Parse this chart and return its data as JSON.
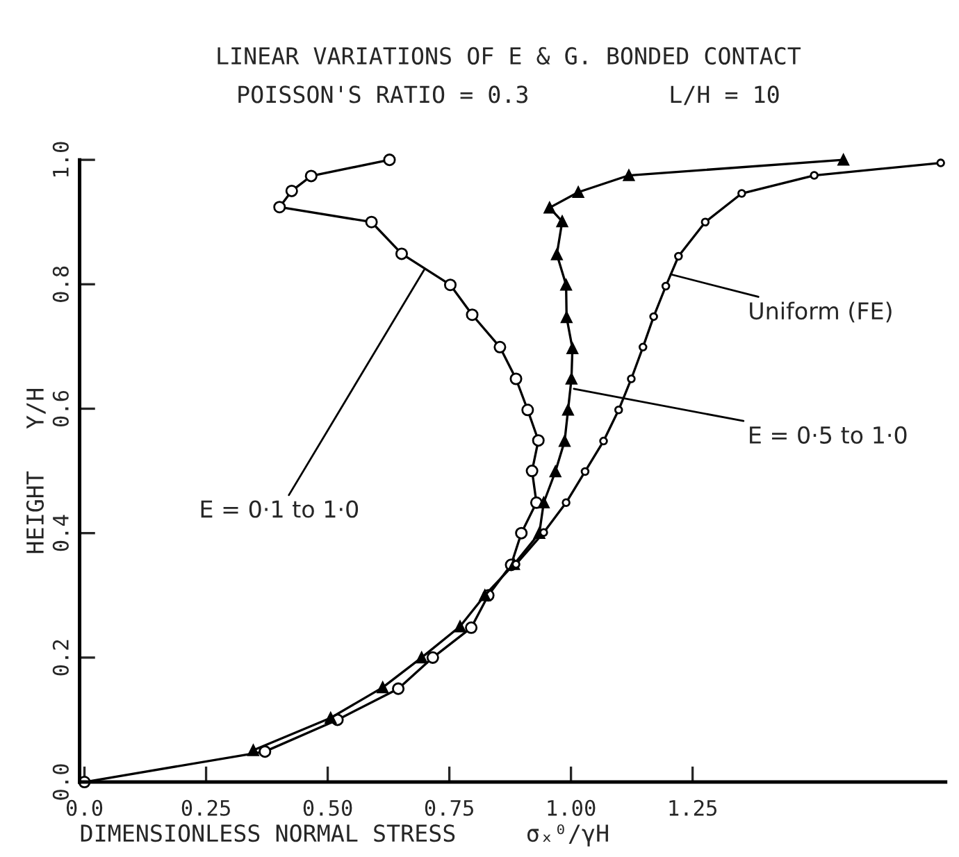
{
  "chart_data": {
    "type": "line",
    "title": "LINEAR VARIATIONS OF E & G. BONDED CONTACT",
    "subtitle": "POISSON'S RATIO = 0.3          L/H = 10",
    "xlabel": "DIMENSIONLESS NORMAL STRESS     σₓ⁰/γH",
    "ylabel": "HEIGHT   Y/H",
    "series": [
      {
        "color": "#000000",
        "marker": "circle",
        "x": [
          0,
          0.371,
          0.52,
          0.645,
          0.716,
          0.795,
          0.83,
          0.877,
          0.898,
          0.929,
          0.92,
          0.933,
          0.911,
          0.887,
          0.854,
          0.797,
          0.752,
          0.652,
          0.59,
          0.401,
          0.426,
          0.466,
          0.627
        ],
        "values": [
          0,
          0.049,
          0.1,
          0.15,
          0.2,
          0.248,
          0.3,
          0.349,
          0.4,
          0.449,
          0.5,
          0.549,
          0.598,
          0.648,
          0.699,
          0.751,
          0.799,
          0.849,
          0.9,
          0.924,
          0.95,
          0.974,
          1.0
        ]
      },
      {
        "color": "#000000",
        "marker": "triangle",
        "x": [
          0.347,
          0.506,
          0.613,
          0.693,
          0.772,
          0.823,
          0.883,
          0.935,
          0.944,
          0.968,
          0.987,
          0.994,
          1.001,
          1.003,
          0.991,
          0.99,
          0.971,
          0.982,
          0.956,
          1.015,
          1.119,
          1.56
        ],
        "values": [
          0.051,
          0.103,
          0.152,
          0.2,
          0.25,
          0.3,
          0.35,
          0.4,
          0.449,
          0.499,
          0.548,
          0.598,
          0.648,
          0.697,
          0.747,
          0.799,
          0.848,
          0.901,
          0.923,
          0.948,
          0.975,
          1.0
        ]
      },
      {
        "color": "#000000",
        "marker": "circle",
        "x": [
          0.887,
          0.944,
          0.99,
          1.029,
          1.067,
          1.098,
          1.124,
          1.148,
          1.17,
          1.195,
          1.221,
          1.276,
          1.351,
          1.5,
          1.76
        ],
        "values": [
          0.35,
          0.401,
          0.449,
          0.499,
          0.548,
          0.598,
          0.648,
          0.699,
          0.748,
          0.797,
          0.845,
          0.9,
          0.946,
          0.975,
          0.995
        ]
      }
    ],
    "xlim": [
      -0.01,
      1.77
    ],
    "ylim": [
      0,
      1.0
    ],
    "xticks": [
      {
        "value": 0,
        "label": "0.0"
      },
      0.25,
      {
        "value": 0.5,
        "label": "0.50"
      },
      0.75,
      {
        "value": 1.0,
        "label": "1.00"
      },
      1.25
    ],
    "yticks": [
      {
        "value": 0,
        "label": "0.0"
      },
      0.2,
      0.4,
      0.6,
      0.8,
      {
        "value": 1.0,
        "label": "1.0"
      }
    ],
    "annotations": [
      {
        "text": "E = 0·1 to 1·0",
        "x": 0.698,
        "y": 0.823
      },
      {
        "text": "E = 0·5 to 1·0",
        "x": 1.006,
        "y": 0.632
      },
      {
        "text": "Uniform (FE)",
        "x": 1.205,
        "y": 0.816
      }
    ],
    "grid": false
  }
}
